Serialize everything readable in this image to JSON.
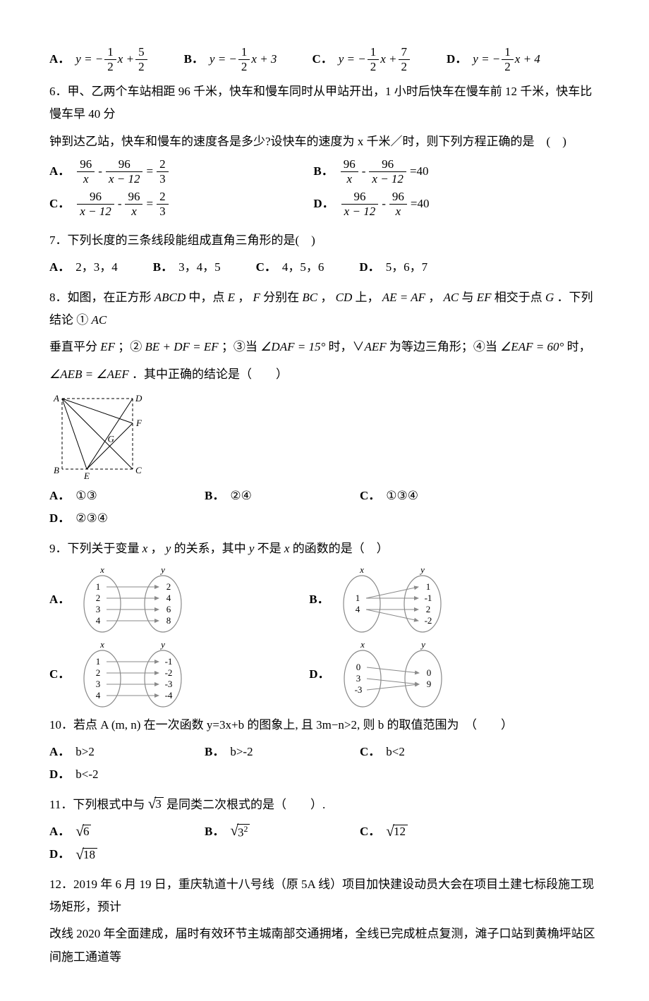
{
  "q5": {
    "options": [
      {
        "label": "A．",
        "eq_prefix": "y = −",
        "f1n": "1",
        "f1d": "2",
        "mid": "x +",
        "f2n": "5",
        "f2d": "2"
      },
      {
        "label": "B．",
        "eq_prefix": "y = −",
        "f1n": "1",
        "f1d": "2",
        "tail": "x + 3"
      },
      {
        "label": "C．",
        "eq_prefix": "y = −",
        "f1n": "1",
        "f1d": "2",
        "mid": "x +",
        "f2n": "7",
        "f2d": "2"
      },
      {
        "label": "D．",
        "eq_prefix": "y = −",
        "f1n": "1",
        "f1d": "2",
        "tail": "x + 4"
      }
    ]
  },
  "q6": {
    "stem1": "6．甲、乙两个车站相距 96 千米，快车和慢车同时从甲站开出，1 小时后快车在慢车前 12 千米，快车比慢车早 40 分",
    "stem2": "钟到达乙站，快车和慢车的速度各是多少?设快车的速度为 x 千米／时，则下列方程正确的是　(　)",
    "opts": {
      "A": {
        "label": "A．",
        "l_n": "96",
        "l_d": "x",
        "op": "-",
        "r_n": "96",
        "r_d": "x − 12",
        "eq": "=",
        "rhs_n": "2",
        "rhs_d": "3"
      },
      "B": {
        "label": "B．",
        "l_n": "96",
        "l_d": "x",
        "op": "-",
        "r_n": "96",
        "r_d": "x − 12",
        "eq": "=40"
      },
      "C": {
        "label": "C．",
        "l_n": "96",
        "l_d": "x − 12",
        "op": "-",
        "r_n": "96",
        "r_d": "x",
        "eq": "=",
        "rhs_n": "2",
        "rhs_d": "3"
      },
      "D": {
        "label": "D．",
        "l_n": "96",
        "l_d": "x − 12",
        "op": "-",
        "r_n": "96",
        "r_d": "x",
        "eq": "=40"
      }
    }
  },
  "q7": {
    "stem": "7．下列长度的三条线段能组成直角三角形的是(　)",
    "opts": [
      {
        "label": "A．",
        "text": "2，3，4"
      },
      {
        "label": "B．",
        "text": "3，4，5"
      },
      {
        "label": "C．",
        "text": "4，5，6"
      },
      {
        "label": "D．",
        "text": "5，6，7"
      }
    ]
  },
  "q8": {
    "stem1_a": "8．如图，在正方形 ",
    "stem1_b": "ABCD",
    "stem1_c": " 中，点 ",
    "stem1_d": "E",
    "stem1_e": " ， ",
    "stem1_f": "F",
    "stem1_g": " 分别在 ",
    "stem1_h": "BC",
    "stem1_i": " ， ",
    "stem1_j": "CD",
    "stem1_k": " 上， ",
    "stem1_l": "AE = AF",
    "stem1_m": " ， ",
    "stem1_n": "AC",
    "stem1_o": " 与 ",
    "stem1_p": "EF",
    "stem1_q": " 相交于点 ",
    "stem1_r": "G",
    "stem1_s": " ．下列结论 ① ",
    "stem1_t": "AC",
    "stem2_a": "垂直平分 ",
    "stem2_b": "EF",
    "stem2_c": " ；② ",
    "stem2_d": "BE + DF = EF",
    "stem2_e": " ；③当 ",
    "stem2_f": "∠DAF = 15°",
    "stem2_g": " 时，∨",
    "stem2_h": "AEF",
    "stem2_i": " 为等边三角形；④当 ",
    "stem2_j": "∠EAF = 60°",
    "stem2_k": " 时，",
    "stem3_a": "∠AEB = ∠AEF",
    "stem3_b": " ．其中正确的结论是（　　）",
    "figure": {
      "labels": {
        "A": "A",
        "B": "B",
        "C": "C",
        "D": "D",
        "E": "E",
        "F": "F",
        "G": "G"
      },
      "stroke": "#000000",
      "dash": "4 3"
    },
    "opts": [
      {
        "label": "A．",
        "text": "①③"
      },
      {
        "label": "B．",
        "text": "②④"
      },
      {
        "label": "C．",
        "text": "①③④"
      },
      {
        "label": "D．",
        "text": "②③④"
      }
    ]
  },
  "q9": {
    "stem_a": "9．下列关于变量 ",
    "stem_b": "x",
    "stem_c": " ， ",
    "stem_d": "y",
    "stem_e": " 的关系，其中 ",
    "stem_f": "y",
    "stem_g": " 不是 ",
    "stem_h": "x",
    "stem_i": " 的函数的是（　）",
    "labels": {
      "x": "x",
      "y": "y"
    },
    "sets": {
      "A": {
        "left": [
          "1",
          "2",
          "3",
          "4"
        ],
        "right": [
          "2",
          "4",
          "6",
          "8"
        ],
        "map": [
          [
            0,
            0
          ],
          [
            1,
            1
          ],
          [
            2,
            2
          ],
          [
            3,
            3
          ]
        ]
      },
      "B": {
        "left": [
          "1",
          "4"
        ],
        "right": [
          "1",
          "-1",
          "2",
          "-2"
        ],
        "map": [
          [
            0,
            0
          ],
          [
            0,
            1
          ],
          [
            1,
            2
          ],
          [
            1,
            3
          ]
        ]
      },
      "C": {
        "left": [
          "1",
          "2",
          "3",
          "4"
        ],
        "right": [
          "-1",
          "-2",
          "-3",
          "-4"
        ],
        "map": [
          [
            0,
            0
          ],
          [
            1,
            1
          ],
          [
            2,
            2
          ],
          [
            3,
            3
          ]
        ]
      },
      "D": {
        "left": [
          "0",
          "3",
          "-3"
        ],
        "right": [
          "0",
          "9"
        ],
        "map": [
          [
            0,
            0
          ],
          [
            1,
            1
          ],
          [
            2,
            1
          ]
        ]
      }
    },
    "colors": {
      "ellipse": "#8a8a8a",
      "arrow": "#8a8a8a",
      "text": "#000000"
    },
    "optlabels": {
      "A": "A．",
      "B": "B．",
      "C": "C．",
      "D": "D．"
    }
  },
  "q10": {
    "stem_a": "10．若点 A ",
    "stem_b": "(m, n)",
    "stem_c": " 在一次函数 y=3x+b 的图象上, 且 3m−n>2, 则 b 的取值范围为　（　　）",
    "opts": [
      {
        "label": "A．",
        "text": "b>2"
      },
      {
        "label": "B．",
        "text": "b>-2"
      },
      {
        "label": "C．",
        "text": "b<2"
      },
      {
        "label": "D．",
        "text": "b<-2"
      }
    ]
  },
  "q11": {
    "stem_a": "11．下列根式中与 ",
    "stem_arg": "3",
    "stem_b": " 是同类二次根式的是（　　）.",
    "opts": [
      {
        "label": "A．",
        "arg": "6"
      },
      {
        "label": "B．",
        "arg": "3",
        "sup": "2"
      },
      {
        "label": "C．",
        "arg": "12"
      },
      {
        "label": "D．",
        "arg": "18"
      }
    ]
  },
  "q12": {
    "line1": "12．2019 年 6 月 19 日，重庆轨道十八号线（原 5A 线）项目加快建设动员大会在项目土建七标段施工现场矩形，预计",
    "line2": "改线 2020 年全面建成，届时有效环节主城南部交通拥堵，全线已完成桩点复测，滩子口站到黄桷坪站区间施工通道等"
  }
}
